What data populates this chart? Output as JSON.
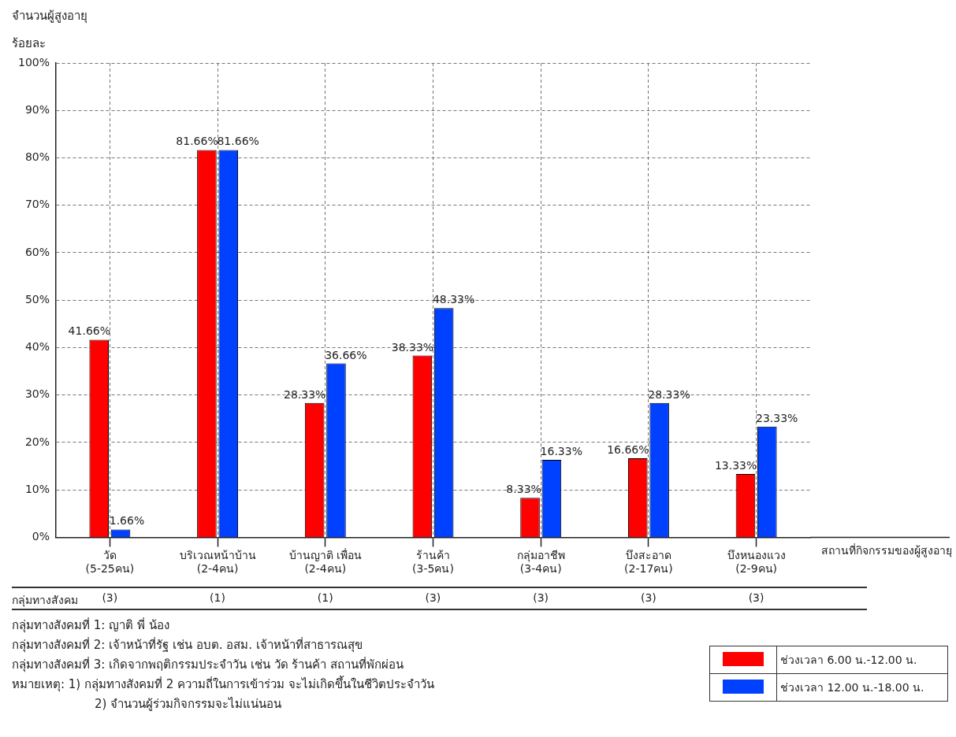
{
  "chart_data": {
    "type": "bar",
    "title": "จำนวนผู้สูงอายุ",
    "ylabel": "ร้อยละ",
    "xlabel": "สถานที่กิจกรรมของผู้สูงอายุ",
    "categories": [
      "วัด\n(5-25คน)",
      "บริเวณหน้าบ้าน\n(2-4คน)",
      "บ้านญาติ เพื่อน\n(2-4คน)",
      "ร้านค้า\n(3-5คน)",
      "กลุ่มอาชีพ\n(3-4คน)",
      "บึงสะอาด\n(2-17คน)",
      "บึงหนองแวง\n(2-9คน)"
    ],
    "series": [
      {
        "name": "ช่วงเวลา 6.00 น.-12.00 น.",
        "color": "#ff0000",
        "values": [
          41.66,
          81.66,
          28.33,
          38.33,
          8.33,
          16.66,
          13.33
        ],
        "value_labels": [
          "41.66%",
          "81.66%",
          "28.33%",
          "38.33%",
          "8.33%",
          "16.66%",
          "13.33%"
        ]
      },
      {
        "name": "ช่วงเวลา 12.00 น.-18.00 น.",
        "color": "#0040ff",
        "values": [
          1.66,
          81.66,
          36.66,
          48.33,
          16.33,
          28.33,
          23.33
        ],
        "value_labels": [
          "1.66%",
          "81.66%",
          "36.66%",
          "48.33%",
          "16.33%",
          "28.33%",
          "23.33%"
        ]
      }
    ],
    "ylim": [
      0,
      100
    ],
    "yticks": [
      {
        "value": 0,
        "label": "0%"
      },
      {
        "value": 10,
        "label": "10%"
      },
      {
        "value": 20,
        "label": "20%"
      },
      {
        "value": 30,
        "label": "30%"
      },
      {
        "value": 40,
        "label": "40%"
      },
      {
        "value": 50,
        "label": "50%"
      },
      {
        "value": 60,
        "label": "60%"
      },
      {
        "value": 70,
        "label": "70%"
      },
      {
        "value": 80,
        "label": "80%"
      },
      {
        "value": 90,
        "label": "90%"
      },
      {
        "value": 100,
        "label": "100%"
      }
    ],
    "grid": true,
    "legend": "bottom right",
    "annotations": [
      "กลุ่มทางสังคม",
      "(3)",
      "(1)",
      "(1)",
      "(3)",
      "(3)",
      "(3)",
      "(3)",
      "กลุ่มทางสังคมที่ 1: ญาติ พี่ น้อง",
      "กลุ่มทางสังคมที่ 2: เจ้าหน้าที่รัฐ เช่น อบต. อสม. เจ้าหน้าที่สาธารณสุข",
      "กลุ่มทางสังคมที่ 3: เกิดจากพฤติกรรมประจำวัน เช่น วัด ร้านค้า สถานที่พักผ่อน",
      "หมายเหตุ:  1) กลุ่มทางสังคมที่ 2 ความถี่ในการเข้าร่วม จะไม่เกิดขึ้นในชีวิตประจำวัน",
      "2) จำนวนผู้ร่วมกิจกรรมจะไม่แน่นอน"
    ]
  }
}
